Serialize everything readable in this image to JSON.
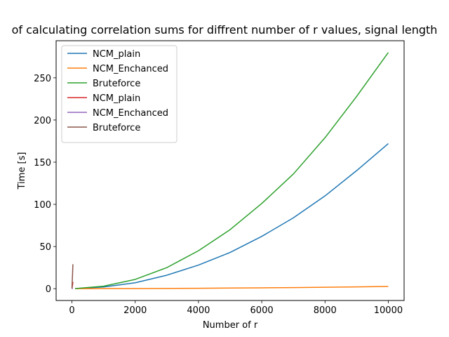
{
  "chart_data": {
    "type": "line",
    "title": "of calculating correlation sums for diffrent number of r values, signal length",
    "xlabel": "Number of r",
    "ylabel": "Time [s]",
    "xlim": [
      -500,
      10500
    ],
    "ylim": [
      -14,
      294
    ],
    "xticks": [
      0,
      2000,
      4000,
      6000,
      8000,
      10000
    ],
    "xtick_labels": [
      "0",
      "2000",
      "4000",
      "6000",
      "8000",
      "10000"
    ],
    "yticks": [
      0,
      50,
      100,
      150,
      200,
      250
    ],
    "ytick_labels": [
      "0",
      "50",
      "100",
      "150",
      "200",
      "250"
    ],
    "grid": false,
    "legend_position": "upper-left",
    "series": [
      {
        "name": "NCM_plain",
        "color": "#1f77b4",
        "x": [
          100,
          1000,
          2000,
          3000,
          4000,
          5000,
          6000,
          7000,
          8000,
          9000,
          10000
        ],
        "y": [
          0.1,
          2,
          7,
          16,
          28,
          43,
          62,
          84,
          110,
          140,
          172
        ]
      },
      {
        "name": "NCM_Enchanced",
        "color": "#ff7f0e",
        "x": [
          100,
          1000,
          2000,
          3000,
          4000,
          5000,
          6000,
          7000,
          8000,
          9000,
          10000
        ],
        "y": [
          0.0,
          0.1,
          0.2,
          0.3,
          0.5,
          0.8,
          1.0,
          1.3,
          1.7,
          2.1,
          2.6
        ]
      },
      {
        "name": "Bruteforce",
        "color": "#2ca02c",
        "x": [
          100,
          1000,
          2000,
          3000,
          4000,
          5000,
          6000,
          7000,
          8000,
          9000,
          10000
        ],
        "y": [
          0.1,
          3,
          11,
          25,
          45,
          70,
          101,
          136,
          179,
          228,
          280
        ]
      },
      {
        "name": "NCM_plain",
        "color": "#d62728",
        "x": [
          1,
          2,
          5,
          10,
          20,
          30
        ],
        "y": [
          0.1,
          0.3,
          1,
          2.5,
          5,
          8
        ]
      },
      {
        "name": "NCM_Enchanced",
        "color": "#9467bd",
        "x": [
          1,
          2,
          5,
          10,
          20,
          30
        ],
        "y": [
          0.0,
          0.0,
          0.1,
          0.1,
          0.2,
          0.3
        ]
      },
      {
        "name": "Bruteforce",
        "color": "#8c564b",
        "x": [
          1,
          2,
          5,
          10,
          20,
          30
        ],
        "y": [
          0.5,
          1.5,
          4,
          9,
          18,
          29
        ]
      }
    ]
  }
}
